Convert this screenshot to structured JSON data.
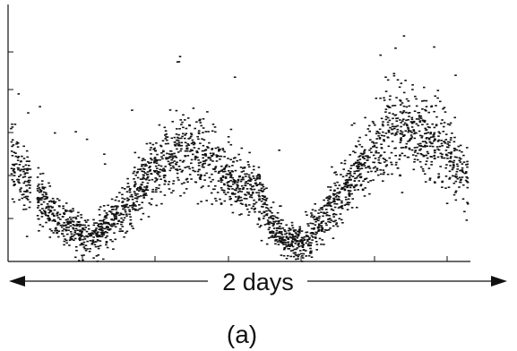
{
  "chart_data": {
    "type": "scatter",
    "title": "",
    "xlabel": "",
    "ylabel": "",
    "span_label": "2 days",
    "caption": "(a)",
    "grid": false,
    "legend": "none",
    "point_color": "#111111",
    "series": [
      {
        "envelope_x": [
          0.0,
          0.04,
          0.06,
          0.12,
          0.18,
          0.24,
          0.3,
          0.36,
          0.42,
          0.48,
          0.54,
          0.58,
          0.61,
          0.64,
          0.68,
          0.72,
          0.76,
          0.8,
          0.86,
          0.92,
          0.97,
          1.0
        ],
        "envelope_y": [
          0.39,
          0.3,
          0.24,
          0.14,
          0.1,
          0.19,
          0.33,
          0.43,
          0.41,
          0.33,
          0.27,
          0.12,
          0.08,
          0.07,
          0.16,
          0.26,
          0.36,
          0.46,
          0.54,
          0.48,
          0.4,
          0.32
        ]
      }
    ]
  }
}
